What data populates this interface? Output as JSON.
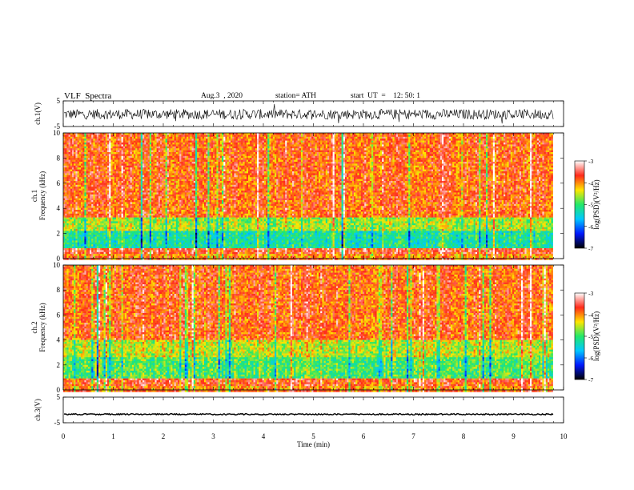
{
  "header": {
    "title": "VLF  Spectra",
    "date": "Aug.3  , 2020",
    "station": "station= ATH",
    "start_ut": "start  UT  =    12: 50: 1"
  },
  "colors": {
    "background_high": "#ff2a1a",
    "mid": "#ffe600",
    "low": "#23e86a",
    "trace": "#000000"
  },
  "chart_data": [
    {
      "type": "line",
      "name": "ch1-waveform",
      "ylabel": "ch.1(V)",
      "yticks": [
        "5",
        "-5"
      ],
      "ylim": [
        -5,
        5
      ],
      "xlim": [
        0,
        10
      ],
      "data_end_min": 9.8,
      "noise_band": [
        -2.2,
        1.8
      ],
      "description_values": {
        "mean": 0,
        "peak_abs": 2.5
      }
    },
    {
      "type": "heatmap",
      "name": "ch1-spectrogram",
      "ylabel": "ch.1\nFrequency (kHz)",
      "ylabel_line1": "ch.1",
      "ylabel_line2": "Frequency  (kHz)",
      "yticks": [
        "10",
        "8",
        "6",
        "4",
        "2",
        "0"
      ],
      "ylim": [
        0,
        10
      ],
      "xlim": [
        0,
        10
      ],
      "data_end_min": 9.8,
      "colorbar": {
        "label": "log(PSD)(V²/Hz)",
        "range": [
          -7,
          -3
        ],
        "ticks": [
          "-3",
          "-4",
          "-5",
          "-6",
          "-7"
        ],
        "colors": [
          "#000000",
          "#0018ff",
          "#00c8ff",
          "#23e86a",
          "#ffe600",
          "#ff2a1a",
          "#ffffff"
        ]
      },
      "bands_khz": [
        {
          "from": 0,
          "to": 0.3,
          "level": -4.0
        },
        {
          "from": 0.3,
          "to": 0.9,
          "level": -3.6
        },
        {
          "from": 0.9,
          "to": 2.2,
          "level": -5.2
        },
        {
          "from": 2.2,
          "to": 3.2,
          "level": -4.6
        },
        {
          "from": 3.2,
          "to": 10,
          "level": -3.8
        }
      ]
    },
    {
      "type": "heatmap",
      "name": "ch2-spectrogram",
      "ylabel_line1": "ch.2",
      "ylabel_line2": "Frequency  (kHz)",
      "yticks": [
        "10",
        "8",
        "6",
        "4",
        "2",
        "0"
      ],
      "ylim": [
        0,
        10
      ],
      "xlim": [
        0,
        10
      ],
      "data_end_min": 9.8,
      "colorbar": {
        "label": "log(PSD)(V²/Hz)",
        "range": [
          -7,
          -3
        ],
        "ticks": [
          "-3",
          "-4",
          "-5",
          "-6",
          "-7"
        ],
        "colors": [
          "#000000",
          "#0018ff",
          "#00c8ff",
          "#23e86a",
          "#ffe600",
          "#ff2a1a",
          "#ffffff"
        ]
      },
      "bands_khz": [
        {
          "from": 0,
          "to": 0.3,
          "level": -4.0
        },
        {
          "from": 0.3,
          "to": 1.0,
          "level": -3.7
        },
        {
          "from": 1.0,
          "to": 2.6,
          "level": -4.9
        },
        {
          "from": 2.6,
          "to": 4.0,
          "level": -4.5
        },
        {
          "from": 4.0,
          "to": 10,
          "level": -3.8
        }
      ]
    },
    {
      "type": "line",
      "name": "ch3-waveform",
      "ylabel": "ch.3(V)",
      "yticks": [
        "5",
        "-5"
      ],
      "ylim": [
        -5,
        5
      ],
      "xlim": [
        0,
        10
      ],
      "data_end_min": 9.8,
      "constant_value": -1.7
    },
    {
      "type": "axis",
      "name": "time-axis",
      "xlabel": "Time  (min)",
      "xticks": [
        "0",
        "1",
        "2",
        "3",
        "4",
        "5",
        "6",
        "7",
        "8",
        "9",
        "10"
      ],
      "xlim": [
        0,
        10
      ]
    }
  ]
}
